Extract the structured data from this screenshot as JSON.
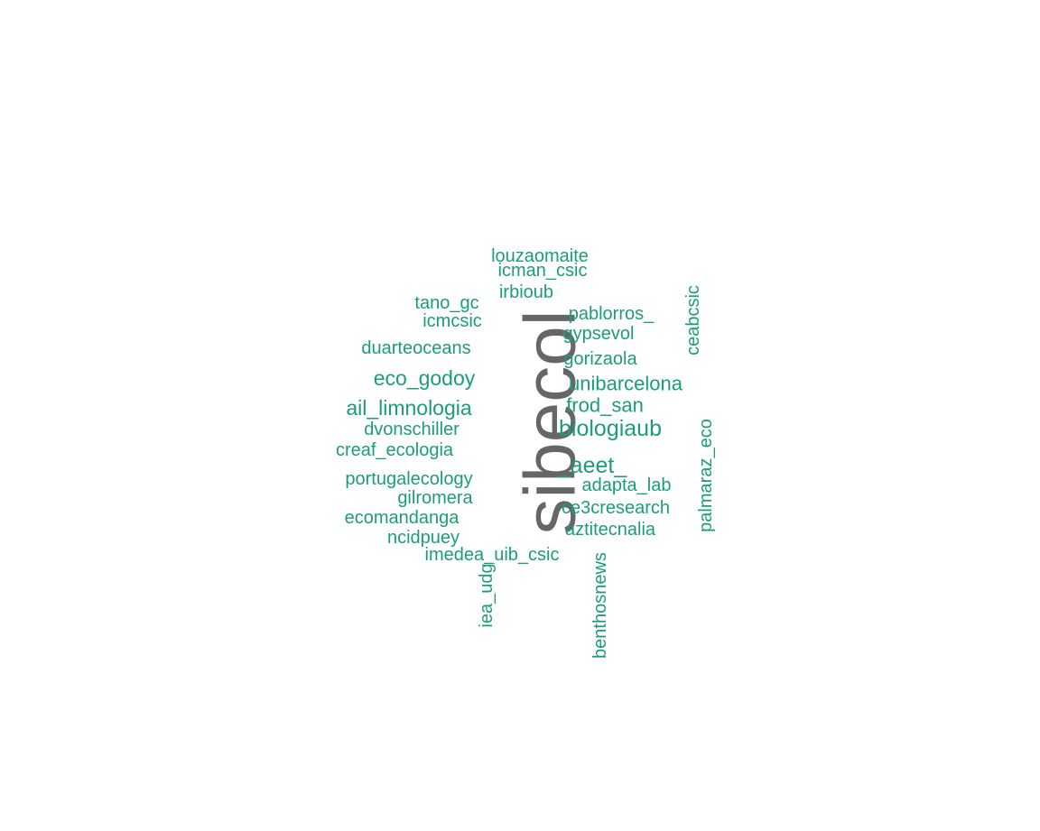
{
  "colors": {
    "main_word": "#666666",
    "other_words": "#1b9e77"
  },
  "words": [
    {
      "key": "sibecol",
      "text": "sibecol",
      "emphasis": "primary",
      "orientation": "vertical"
    },
    {
      "key": "louzaomaite",
      "text": "louzaomaite",
      "orientation": "horizontal"
    },
    {
      "key": "icman_csic",
      "text": "icman_csic",
      "orientation": "horizontal"
    },
    {
      "key": "irbioub",
      "text": "irbioub",
      "orientation": "horizontal"
    },
    {
      "key": "tano_gc",
      "text": "tano_gc",
      "orientation": "horizontal"
    },
    {
      "key": "icmcsic",
      "text": "icmcsic",
      "orientation": "horizontal"
    },
    {
      "key": "pablorros",
      "text": "pablorros_",
      "orientation": "horizontal"
    },
    {
      "key": "gypsevol",
      "text": "gypsevol",
      "orientation": "horizontal"
    },
    {
      "key": "ceabcsic",
      "text": "ceabcsic",
      "orientation": "vertical"
    },
    {
      "key": "duarteoceans",
      "text": "duarteoceans",
      "orientation": "horizontal"
    },
    {
      "key": "gorizaola",
      "text": "gorizaola",
      "orientation": "horizontal"
    },
    {
      "key": "eco_godoy",
      "text": "eco_godoy",
      "orientation": "horizontal"
    },
    {
      "key": "unibarcelona",
      "text": "unibarcelona",
      "orientation": "horizontal"
    },
    {
      "key": "ail_limnologia",
      "text": "ail_limnologia",
      "orientation": "horizontal"
    },
    {
      "key": "frod_san",
      "text": "frod_san",
      "orientation": "horizontal"
    },
    {
      "key": "dvonschiller",
      "text": "dvonschiller",
      "orientation": "horizontal"
    },
    {
      "key": "biologiaub",
      "text": "biologiaub",
      "orientation": "horizontal"
    },
    {
      "key": "palmaraz_eco",
      "text": "palmaraz_eco",
      "orientation": "vertical"
    },
    {
      "key": "creaf_ecologia",
      "text": "creaf_ecologia",
      "orientation": "horizontal"
    },
    {
      "key": "aeet",
      "text": "_aeet_",
      "orientation": "horizontal"
    },
    {
      "key": "portugalecology",
      "text": "portugalecology",
      "orientation": "horizontal"
    },
    {
      "key": "adapta_lab",
      "text": "adapta_lab",
      "orientation": "horizontal"
    },
    {
      "key": "gilromera",
      "text": "gilromera",
      "orientation": "horizontal"
    },
    {
      "key": "ce3cresearch",
      "text": "ce3cresearch",
      "orientation": "horizontal"
    },
    {
      "key": "ecomandanga",
      "text": "ecomandanga",
      "orientation": "horizontal"
    },
    {
      "key": "aztitecnalia",
      "text": "aztitecnalia",
      "orientation": "horizontal"
    },
    {
      "key": "ncidpuey",
      "text": "ncidpuey",
      "orientation": "horizontal"
    },
    {
      "key": "imedea_uib_csic",
      "text": "imedea_uib_csic",
      "orientation": "horizontal"
    },
    {
      "key": "iea_udg",
      "text": "iea_udg",
      "orientation": "vertical"
    },
    {
      "key": "benthosnews",
      "text": "benthosnews",
      "orientation": "vertical"
    }
  ]
}
